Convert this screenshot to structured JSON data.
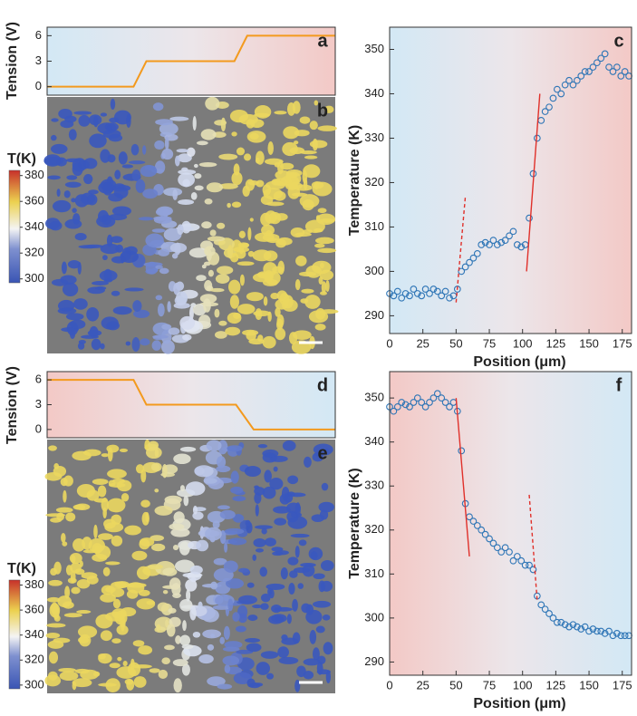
{
  "chart_data": [
    {
      "type": "line",
      "ylabel": "Tension (V)",
      "label": "a",
      "xlim": [
        0,
        180
      ],
      "ylim": [
        -1,
        7
      ],
      "yticks": [
        0,
        3,
        6
      ],
      "x": [
        0,
        54,
        62,
        117,
        125,
        180
      ],
      "values": [
        0,
        0,
        3,
        3,
        6,
        6
      ],
      "color": "#f39a1e"
    },
    {
      "type": "image",
      "label": "b",
      "colorbar": {
        "title": "T(K)",
        "lim": [
          297,
          384
        ],
        "ticks": [
          300,
          320,
          340,
          360,
          380
        ]
      }
    },
    {
      "type": "scatter",
      "label": "c",
      "xlabel": "Position (μm)",
      "ylabel": "Temperature (K)",
      "xlim": [
        0,
        182
      ],
      "ylim": [
        286,
        355
      ],
      "xticks": [
        0,
        25,
        50,
        75,
        100,
        125,
        150,
        175
      ],
      "yticks": [
        290,
        300,
        310,
        320,
        330,
        340,
        350
      ],
      "color": "#2e75b6",
      "x": [
        0,
        3,
        6,
        9,
        12,
        15,
        18,
        21,
        24,
        27,
        30,
        33,
        36,
        39,
        42,
        45,
        48,
        51,
        54,
        57,
        60,
        63,
        66,
        69,
        72,
        75,
        78,
        81,
        84,
        87,
        90,
        93,
        96,
        99,
        102,
        105,
        108,
        111,
        114,
        117,
        120,
        123,
        126,
        129,
        132,
        135,
        138,
        141,
        144,
        147,
        150,
        153,
        156,
        159,
        162,
        165,
        168,
        171,
        174,
        177,
        180
      ],
      "values": [
        295,
        294.5,
        295.5,
        294,
        295,
        294.5,
        296,
        295,
        294.5,
        296,
        295,
        296,
        295.5,
        294.5,
        295.5,
        294,
        294.5,
        296,
        300,
        301,
        302,
        303,
        304,
        306,
        306.5,
        306,
        307,
        306,
        306.5,
        307,
        308,
        309,
        306,
        305.5,
        306,
        312,
        322,
        330,
        334,
        336,
        337,
        339,
        341,
        340,
        342,
        343,
        342,
        343,
        344,
        345,
        345,
        346,
        347,
        348,
        349,
        346,
        345,
        346,
        344,
        345,
        344
      ],
      "fits": [
        {
          "x": [
            50,
            57
          ],
          "values": [
            293,
            317
          ],
          "color": "#e0302a",
          "style": "dashed"
        },
        {
          "x": [
            103,
            113
          ],
          "values": [
            300,
            340
          ],
          "color": "#e0302a",
          "style": "solid"
        }
      ]
    },
    {
      "type": "line",
      "ylabel": "Tension (V)",
      "label": "d",
      "xlim": [
        0,
        180
      ],
      "ylim": [
        -1,
        7
      ],
      "yticks": [
        0,
        3,
        6
      ],
      "x": [
        0,
        54,
        62,
        118,
        129,
        180
      ],
      "values": [
        6,
        6,
        3,
        3,
        0,
        0
      ],
      "color": "#f39a1e"
    },
    {
      "type": "image",
      "label": "e",
      "colorbar": {
        "title": "T(K)",
        "lim": [
          297,
          384
        ],
        "ticks": [
          300,
          320,
          340,
          360,
          380
        ]
      }
    },
    {
      "type": "scatter",
      "label": "f",
      "xlabel": "Position (μm)",
      "ylabel": "Temperature (K)",
      "xlim": [
        0,
        182
      ],
      "ylim": [
        287,
        356
      ],
      "xticks": [
        0,
        25,
        50,
        75,
        100,
        125,
        150,
        175
      ],
      "yticks": [
        290,
        300,
        310,
        320,
        330,
        340,
        350
      ],
      "color": "#2e75b6",
      "x": [
        0,
        3,
        6,
        9,
        12,
        15,
        18,
        21,
        24,
        27,
        30,
        33,
        36,
        39,
        42,
        45,
        48,
        51,
        54,
        57,
        60,
        63,
        66,
        69,
        72,
        75,
        78,
        81,
        84,
        87,
        90,
        93,
        96,
        99,
        102,
        105,
        108,
        111,
        114,
        117,
        120,
        123,
        126,
        129,
        132,
        135,
        138,
        141,
        144,
        147,
        150,
        153,
        156,
        159,
        162,
        165,
        168,
        171,
        174,
        177,
        180
      ],
      "values": [
        348,
        347,
        348,
        349,
        348.5,
        348,
        349,
        350,
        349,
        348,
        349,
        350,
        351,
        350,
        349,
        348,
        349,
        347,
        338,
        326,
        323,
        322,
        321,
        320,
        319,
        318,
        317,
        316,
        315,
        316,
        315,
        313,
        314,
        313,
        312,
        312,
        311,
        305,
        303,
        302,
        301,
        300,
        299,
        299,
        298.5,
        298,
        298.5,
        298,
        297.5,
        298,
        297,
        297.5,
        297,
        297,
        296.5,
        297,
        296,
        296.5,
        296,
        296,
        296
      ],
      "fits": [
        {
          "x": [
            50,
            60
          ],
          "values": [
            350,
            314
          ],
          "color": "#e0302a",
          "style": "solid"
        },
        {
          "x": [
            105,
            111
          ],
          "values": [
            328,
            304
          ],
          "color": "#e0302a",
          "style": "dashed"
        }
      ]
    }
  ]
}
